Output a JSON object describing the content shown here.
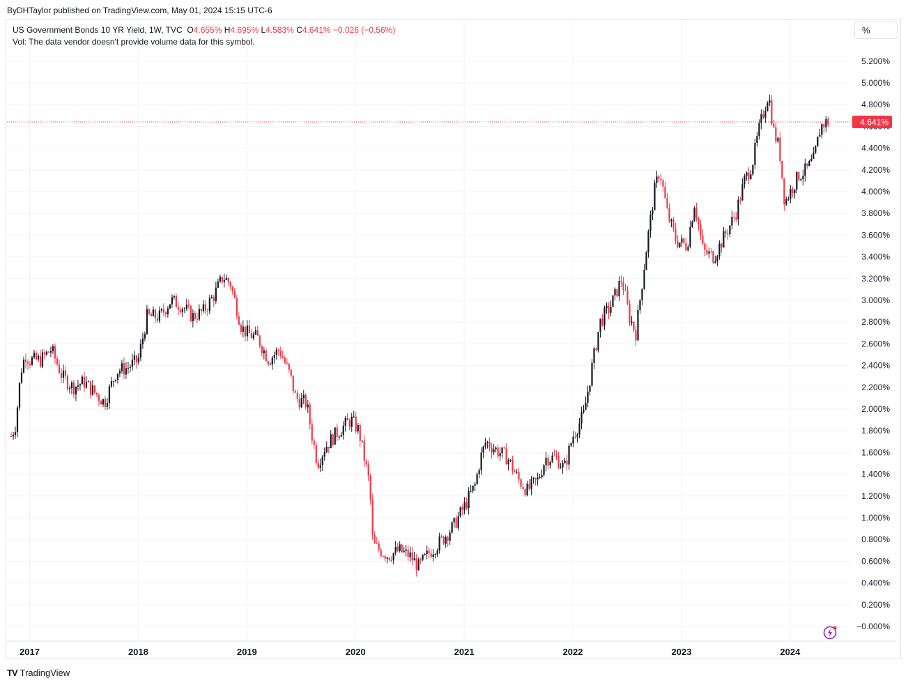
{
  "header": {
    "published": "ByDHTaylor published on TradingView.com, May 01, 2024 15:15 UTC-6"
  },
  "legend": {
    "symbol": "US Government Bonds 10 YR Yield, 1W, TVC",
    "open_label": "O",
    "open": "4.655%",
    "high_label": "H",
    "high": "4.695%",
    "low_label": "L",
    "low": "4.583%",
    "close_label": "C",
    "close": "4.641%",
    "change": "−0.026 (−0.56%)",
    "volume_note": "Vol: The data vendor doesn't provide volume data for this symbol."
  },
  "scale_button": "%",
  "price_tag": "4.641%",
  "footer": {
    "brand": "TradingView",
    "logo": "TV"
  },
  "colors": {
    "up": "#131722",
    "down": "#f23645",
    "grid": "#f0f3fa",
    "last_price": "#f23645"
  },
  "chart_data": {
    "type": "candlestick",
    "interval": "1W",
    "y_unit": "%",
    "y_range": [
      -0.1,
      5.35
    ],
    "y_ticks": [
      "5.200%",
      "5.000%",
      "4.800%",
      "4.600%",
      "4.400%",
      "4.200%",
      "4.000%",
      "3.800%",
      "3.600%",
      "3.400%",
      "3.200%",
      "3.000%",
      "2.800%",
      "2.600%",
      "2.400%",
      "2.200%",
      "2.000%",
      "1.800%",
      "1.600%",
      "1.400%",
      "1.200%",
      "1.000%",
      "0.800%",
      "0.600%",
      "0.400%",
      "0.200%",
      "−0.000%"
    ],
    "x_ticks": [
      "2017",
      "2018",
      "2019",
      "2020",
      "2021",
      "2022",
      "2023",
      "2024"
    ],
    "x_range": [
      2016.83,
      2024.36
    ],
    "last_value": 4.641,
    "series": [
      {
        "t": 2016.83,
        "y": 1.75
      },
      {
        "t": 2016.87,
        "y": 1.85
      },
      {
        "t": 2016.92,
        "y": 2.35
      },
      {
        "t": 2016.96,
        "y": 2.5
      },
      {
        "t": 2017.0,
        "y": 2.45
      },
      {
        "t": 2017.1,
        "y": 2.45
      },
      {
        "t": 2017.2,
        "y": 2.55
      },
      {
        "t": 2017.3,
        "y": 2.3
      },
      {
        "t": 2017.4,
        "y": 2.2
      },
      {
        "t": 2017.5,
        "y": 2.25
      },
      {
        "t": 2017.6,
        "y": 2.15
      },
      {
        "t": 2017.69,
        "y": 2.06
      },
      {
        "t": 2017.8,
        "y": 2.35
      },
      {
        "t": 2017.9,
        "y": 2.38
      },
      {
        "t": 2018.0,
        "y": 2.45
      },
      {
        "t": 2018.08,
        "y": 2.85
      },
      {
        "t": 2018.2,
        "y": 2.85
      },
      {
        "t": 2018.3,
        "y": 3.0
      },
      {
        "t": 2018.4,
        "y": 2.95
      },
      {
        "t": 2018.5,
        "y": 2.85
      },
      {
        "t": 2018.6,
        "y": 2.9
      },
      {
        "t": 2018.7,
        "y": 3.05
      },
      {
        "t": 2018.78,
        "y": 3.22
      },
      {
        "t": 2018.85,
        "y": 3.15
      },
      {
        "t": 2018.95,
        "y": 2.75
      },
      {
        "t": 2019.0,
        "y": 2.7
      },
      {
        "t": 2019.1,
        "y": 2.65
      },
      {
        "t": 2019.2,
        "y": 2.45
      },
      {
        "t": 2019.3,
        "y": 2.55
      },
      {
        "t": 2019.4,
        "y": 2.3
      },
      {
        "t": 2019.45,
        "y": 2.1
      },
      {
        "t": 2019.55,
        "y": 2.05
      },
      {
        "t": 2019.6,
        "y": 1.75
      },
      {
        "t": 2019.65,
        "y": 1.5
      },
      {
        "t": 2019.72,
        "y": 1.65
      },
      {
        "t": 2019.8,
        "y": 1.75
      },
      {
        "t": 2019.9,
        "y": 1.85
      },
      {
        "t": 2019.96,
        "y": 1.9
      },
      {
        "t": 2020.03,
        "y": 1.8
      },
      {
        "t": 2020.08,
        "y": 1.55
      },
      {
        "t": 2020.13,
        "y": 1.3
      },
      {
        "t": 2020.16,
        "y": 0.75
      },
      {
        "t": 2020.2,
        "y": 0.72
      },
      {
        "t": 2020.3,
        "y": 0.65
      },
      {
        "t": 2020.4,
        "y": 0.7
      },
      {
        "t": 2020.5,
        "y": 0.65
      },
      {
        "t": 2020.58,
        "y": 0.55
      },
      {
        "t": 2020.68,
        "y": 0.68
      },
      {
        "t": 2020.8,
        "y": 0.8
      },
      {
        "t": 2020.9,
        "y": 0.92
      },
      {
        "t": 2021.0,
        "y": 1.1
      },
      {
        "t": 2021.1,
        "y": 1.3
      },
      {
        "t": 2021.15,
        "y": 1.55
      },
      {
        "t": 2021.2,
        "y": 1.7
      },
      {
        "t": 2021.3,
        "y": 1.62
      },
      {
        "t": 2021.4,
        "y": 1.55
      },
      {
        "t": 2021.5,
        "y": 1.35
      },
      {
        "t": 2021.58,
        "y": 1.25
      },
      {
        "t": 2021.68,
        "y": 1.35
      },
      {
        "t": 2021.75,
        "y": 1.55
      },
      {
        "t": 2021.85,
        "y": 1.55
      },
      {
        "t": 2021.92,
        "y": 1.45
      },
      {
        "t": 2022.0,
        "y": 1.75
      },
      {
        "t": 2022.1,
        "y": 1.95
      },
      {
        "t": 2022.17,
        "y": 2.35
      },
      {
        "t": 2022.25,
        "y": 2.8
      },
      {
        "t": 2022.35,
        "y": 2.95
      },
      {
        "t": 2022.45,
        "y": 3.2
      },
      {
        "t": 2022.52,
        "y": 2.85
      },
      {
        "t": 2022.58,
        "y": 2.7
      },
      {
        "t": 2022.68,
        "y": 3.5
      },
      {
        "t": 2022.75,
        "y": 4.0
      },
      {
        "t": 2022.8,
        "y": 4.2
      },
      {
        "t": 2022.87,
        "y": 3.8
      },
      {
        "t": 2022.95,
        "y": 3.55
      },
      {
        "t": 2023.05,
        "y": 3.5
      },
      {
        "t": 2023.12,
        "y": 3.9
      },
      {
        "t": 2023.2,
        "y": 3.45
      },
      {
        "t": 2023.3,
        "y": 3.4
      },
      {
        "t": 2023.4,
        "y": 3.6
      },
      {
        "t": 2023.5,
        "y": 3.8
      },
      {
        "t": 2023.58,
        "y": 4.1
      },
      {
        "t": 2023.65,
        "y": 4.25
      },
      {
        "t": 2023.72,
        "y": 4.6
      },
      {
        "t": 2023.8,
        "y": 4.9
      },
      {
        "t": 2023.85,
        "y": 4.55
      },
      {
        "t": 2023.9,
        "y": 4.4
      },
      {
        "t": 2023.95,
        "y": 3.9
      },
      {
        "t": 2024.0,
        "y": 4.0
      },
      {
        "t": 2024.08,
        "y": 4.15
      },
      {
        "t": 2024.15,
        "y": 4.2
      },
      {
        "t": 2024.22,
        "y": 4.3
      },
      {
        "t": 2024.28,
        "y": 4.6
      },
      {
        "t": 2024.33,
        "y": 4.64
      }
    ]
  }
}
